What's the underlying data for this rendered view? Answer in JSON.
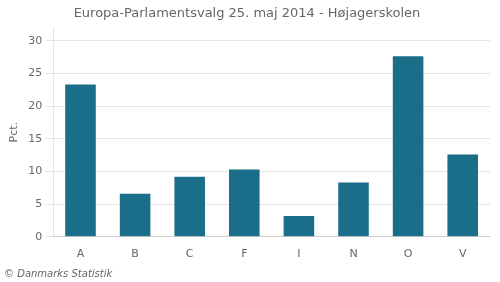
{
  "chart_data": {
    "type": "bar",
    "title": "Europa-Parlamentsvalg 25. maj 2014 - Højagerskolen",
    "ylabel": "Pct.",
    "footer": "© Danmarks Statistik",
    "categories": [
      "A",
      "B",
      "C",
      "F",
      "I",
      "N",
      "O",
      "V"
    ],
    "values": [
      23.3,
      6.6,
      9.2,
      10.3,
      3.2,
      8.3,
      27.6,
      12.6
    ],
    "color": "#1a6e8a",
    "ylim": [
      0,
      32
    ],
    "yticks": [
      0,
      5,
      10,
      15,
      20,
      25,
      30
    ],
    "grid": true
  }
}
